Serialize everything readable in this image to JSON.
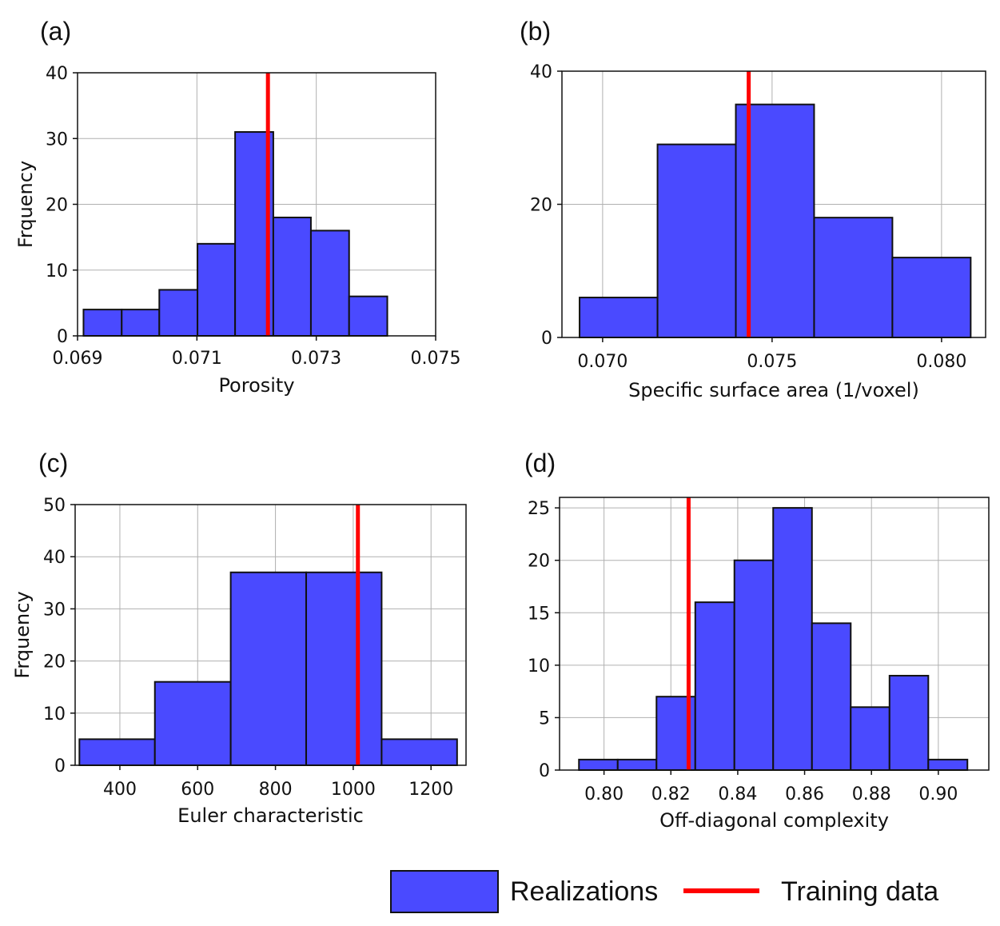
{
  "chart_data": [
    {
      "panel_label": "(a)",
      "type": "bar",
      "xlabel": "Porosity",
      "ylabel": "Frquency",
      "xlim": [
        0.069,
        0.075
      ],
      "ylim": [
        0,
        40
      ],
      "xticks": [
        0.069,
        0.071,
        0.073,
        0.075
      ],
      "xtick_labels": [
        "0.069",
        "0.071",
        "0.073",
        "0.075"
      ],
      "yticks": [
        0,
        10,
        20,
        30,
        40
      ],
      "ytick_labels": [
        "0",
        "10",
        "20",
        "30",
        "40"
      ],
      "bin_edges": [
        0.0691,
        0.06974,
        0.07037,
        0.07101,
        0.07164,
        0.07228,
        0.07291,
        0.07355,
        0.07419
      ],
      "counts": [
        4,
        4,
        7,
        14,
        31,
        18,
        16,
        6
      ],
      "training_value": 0.07219
    },
    {
      "panel_label": "(b)",
      "type": "bar",
      "xlabel": "Specific surface area (1/voxel)",
      "ylabel": "",
      "xlim": [
        0.0688,
        0.0813
      ],
      "ylim": [
        0,
        40
      ],
      "xticks": [
        0.07,
        0.075,
        0.08
      ],
      "xtick_labels": [
        "0.070",
        "0.075",
        "0.080"
      ],
      "yticks": [
        0,
        20,
        40
      ],
      "ytick_labels": [
        "0",
        "20",
        "40"
      ],
      "bin_edges": [
        0.06932,
        0.07162,
        0.07393,
        0.07624,
        0.07855,
        0.08086
      ],
      "counts": [
        6,
        29,
        35,
        18,
        12
      ],
      "training_value": 0.07431
    },
    {
      "panel_label": "(c)",
      "type": "bar",
      "xlabel": "Euler characteristic",
      "ylabel": "Frquency",
      "xlim": [
        285,
        1290
      ],
      "ylim": [
        0,
        50
      ],
      "xticks": [
        400,
        600,
        800,
        1000,
        1200
      ],
      "xtick_labels": [
        "400",
        "600",
        "800",
        "1000",
        "1200"
      ],
      "yticks": [
        0,
        10,
        20,
        30,
        40,
        50
      ],
      "ytick_labels": [
        "0",
        "10",
        "20",
        "30",
        "40",
        "50"
      ],
      "bin_edges": [
        296,
        490,
        685,
        879,
        1073,
        1267
      ],
      "counts": [
        5,
        16,
        37,
        37,
        5
      ],
      "training_value": 1012
    },
    {
      "panel_label": "(d)",
      "type": "bar",
      "xlabel": "Off-diagonal complexity",
      "ylabel": "",
      "xlim": [
        0.7867,
        0.9151
      ],
      "ylim": [
        0,
        26
      ],
      "xticks": [
        0.8,
        0.82,
        0.84,
        0.86,
        0.88,
        0.9
      ],
      "xtick_labels": [
        "0.80",
        "0.82",
        "0.84",
        "0.86",
        "0.88",
        "0.90"
      ],
      "yticks": [
        0,
        5,
        10,
        15,
        20,
        25
      ],
      "ytick_labels": [
        "0",
        "5",
        "10",
        "15",
        "20",
        "25"
      ],
      "bin_edges": [
        0.7925,
        0.8041,
        0.8157,
        0.8273,
        0.839,
        0.8506,
        0.8622,
        0.8738,
        0.8854,
        0.897,
        0.9087
      ],
      "counts": [
        1,
        1,
        7,
        16,
        20,
        25,
        14,
        6,
        9,
        1
      ],
      "training_value": 0.8253
    }
  ],
  "legend": {
    "realizations_label": "Realizations",
    "training_label": "Training data",
    "bar_color": "#4a4aff",
    "line_color": "#ff0000"
  }
}
